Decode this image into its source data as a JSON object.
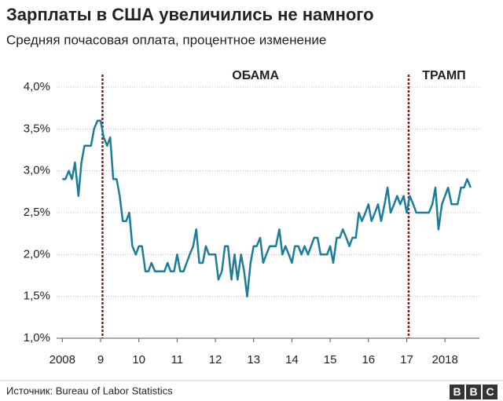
{
  "chart_data": {
    "type": "line",
    "title": "Зарплаты в США увеличились не намного",
    "subtitle": "Средняя почасовая оплата, процентное изменение",
    "source": "Источник: Bureau of Labor Statistics",
    "logo": [
      "B",
      "B",
      "C"
    ],
    "color": "#1c7d99",
    "x": [
      2008,
      2008.08,
      2008.17,
      2008.25,
      2008.33,
      2008.42,
      2008.5,
      2008.58,
      2008.67,
      2008.75,
      2008.83,
      2008.92,
      2009,
      2009.08,
      2009.17,
      2009.25,
      2009.33,
      2009.42,
      2009.5,
      2009.58,
      2009.67,
      2009.75,
      2009.83,
      2009.92,
      2010,
      2010.08,
      2010.17,
      2010.25,
      2010.33,
      2010.42,
      2010.5,
      2010.58,
      2010.67,
      2010.75,
      2010.83,
      2010.92,
      2011,
      2011.08,
      2011.17,
      2011.25,
      2011.33,
      2011.42,
      2011.5,
      2011.58,
      2011.67,
      2011.75,
      2011.83,
      2011.92,
      2012,
      2012.08,
      2012.17,
      2012.25,
      2012.33,
      2012.42,
      2012.5,
      2012.58,
      2012.67,
      2012.75,
      2012.83,
      2012.92,
      2013,
      2013.08,
      2013.17,
      2013.25,
      2013.33,
      2013.42,
      2013.5,
      2013.58,
      2013.67,
      2013.75,
      2013.83,
      2013.92,
      2014,
      2014.08,
      2014.17,
      2014.25,
      2014.33,
      2014.42,
      2014.5,
      2014.58,
      2014.67,
      2014.75,
      2014.83,
      2014.92,
      2015,
      2015.08,
      2015.17,
      2015.25,
      2015.33,
      2015.42,
      2015.5,
      2015.58,
      2015.67,
      2015.75,
      2015.83,
      2015.92,
      2016,
      2016.08,
      2016.17,
      2016.25,
      2016.33,
      2016.42,
      2016.5,
      2016.58,
      2016.67,
      2016.75,
      2016.83,
      2016.92,
      2017,
      2017.08,
      2017.17,
      2017.25,
      2017.33,
      2017.42,
      2017.5,
      2017.58,
      2017.67,
      2017.75,
      2017.83,
      2017.92,
      2018,
      2018.08,
      2018.17,
      2018.25,
      2018.33,
      2018.42,
      2018.5,
      2018.58,
      2018.67
    ],
    "values": [
      2.9,
      2.9,
      3.0,
      2.9,
      3.1,
      2.7,
      3.1,
      3.3,
      3.3,
      3.3,
      3.5,
      3.6,
      3.6,
      3.4,
      3.3,
      3.4,
      2.9,
      2.9,
      2.7,
      2.4,
      2.4,
      2.5,
      2.1,
      2.0,
      2.1,
      2.1,
      1.8,
      1.8,
      1.9,
      1.8,
      1.8,
      1.8,
      1.8,
      1.9,
      1.8,
      1.8,
      2.0,
      1.8,
      1.8,
      1.9,
      2.0,
      2.1,
      2.3,
      1.9,
      1.9,
      2.1,
      2.0,
      2.0,
      2.0,
      1.7,
      1.8,
      2.1,
      2.1,
      1.7,
      2.0,
      1.7,
      2.0,
      1.8,
      1.5,
      1.9,
      2.1,
      2.1,
      2.2,
      1.9,
      2.0,
      2.1,
      2.1,
      2.1,
      2.3,
      2.0,
      2.1,
      2.0,
      1.9,
      2.1,
      2.1,
      2.0,
      2.1,
      2.0,
      2.1,
      2.2,
      2.2,
      2.0,
      2.0,
      2.0,
      2.1,
      1.9,
      2.2,
      2.2,
      2.3,
      2.2,
      2.1,
      2.2,
      2.2,
      2.5,
      2.4,
      2.5,
      2.6,
      2.4,
      2.5,
      2.6,
      2.4,
      2.6,
      2.8,
      2.5,
      2.6,
      2.7,
      2.6,
      2.7,
      2.5,
      2.7,
      2.6,
      2.5,
      2.5,
      2.5,
      2.5,
      2.5,
      2.6,
      2.8,
      2.3,
      2.6,
      2.7,
      2.8,
      2.6,
      2.6,
      2.6,
      2.8,
      2.8,
      2.9,
      2.8
    ],
    "xlim": [
      2007.85,
      2018.9
    ],
    "xticks": [
      {
        "value": 2008,
        "label": "2008"
      },
      {
        "value": 2009,
        "label": "9"
      },
      {
        "value": 2010,
        "label": "10"
      },
      {
        "value": 2011,
        "label": "11"
      },
      {
        "value": 2012,
        "label": "12"
      },
      {
        "value": 2013,
        "label": "13"
      },
      {
        "value": 2014,
        "label": "14"
      },
      {
        "value": 2015,
        "label": "15"
      },
      {
        "value": 2016,
        "label": "16"
      },
      {
        "value": 2017,
        "label": "17"
      },
      {
        "value": 2018,
        "label": "2018"
      }
    ],
    "ylim": [
      1.0,
      4.0
    ],
    "yticks": [
      {
        "value": 1.0,
        "label": "1,0%"
      },
      {
        "value": 1.5,
        "label": "1,5%"
      },
      {
        "value": 2.0,
        "label": "2,0%"
      },
      {
        "value": 2.5,
        "label": "2,5%"
      },
      {
        "value": 3.0,
        "label": "3,0%"
      },
      {
        "value": 3.5,
        "label": "3,5%"
      },
      {
        "value": 4.0,
        "label": "4,0%"
      }
    ],
    "grid": true,
    "events": [
      {
        "label": "ОБАМА",
        "x": 2009.05
      },
      {
        "label": "ТРАМП",
        "x": 2017.05
      }
    ],
    "event_color": "#8b1a1a"
  }
}
